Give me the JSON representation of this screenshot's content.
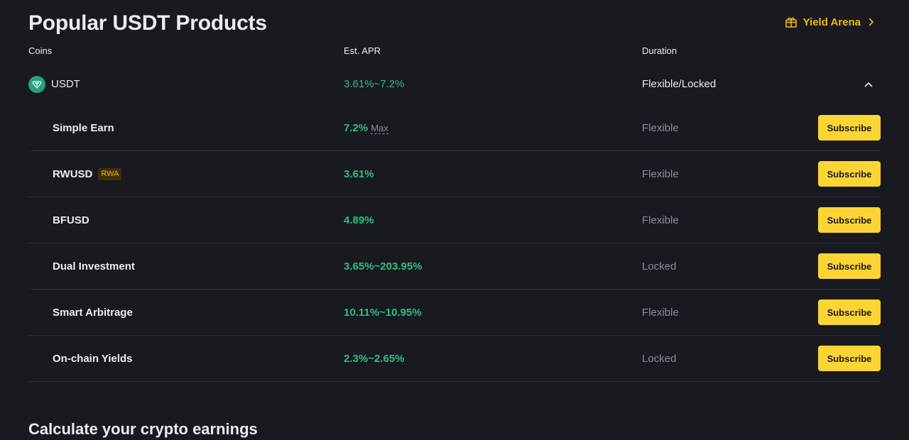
{
  "header": {
    "title": "Popular USDT Products",
    "yield_link": "Yield Arena"
  },
  "columns": {
    "coins": "Coins",
    "apr": "Est. APR",
    "duration": "Duration"
  },
  "coin": {
    "name": "USDT",
    "apr": "3.61%~7.2%",
    "duration": "Flexible/Locked",
    "icon": "tether-icon"
  },
  "products": [
    {
      "name": "Simple Earn",
      "apr": "7.2%",
      "apr_note": "Max",
      "duration": "Flexible",
      "action": "Subscribe"
    },
    {
      "name": "RWUSD",
      "tag": "RWA",
      "apr": "3.61%",
      "duration": "Flexible",
      "action": "Subscribe"
    },
    {
      "name": "BFUSD",
      "apr": "4.89%",
      "duration": "Flexible",
      "action": "Subscribe"
    },
    {
      "name": "Dual Investment",
      "apr": "3.65%~203.95%",
      "duration": "Locked",
      "action": "Subscribe"
    },
    {
      "name": "Smart Arbitrage",
      "apr": "10.11%~10.95%",
      "duration": "Flexible",
      "action": "Subscribe"
    },
    {
      "name": "On-chain Yields",
      "apr": "2.3%~2.65%",
      "duration": "Locked",
      "action": "Subscribe"
    }
  ],
  "calculator": {
    "title": "Calculate your crypto earnings"
  },
  "colors": {
    "background": "#181a20",
    "accent": "#fcd535",
    "positive": "#2ebd85",
    "muted": "#848e9c"
  }
}
